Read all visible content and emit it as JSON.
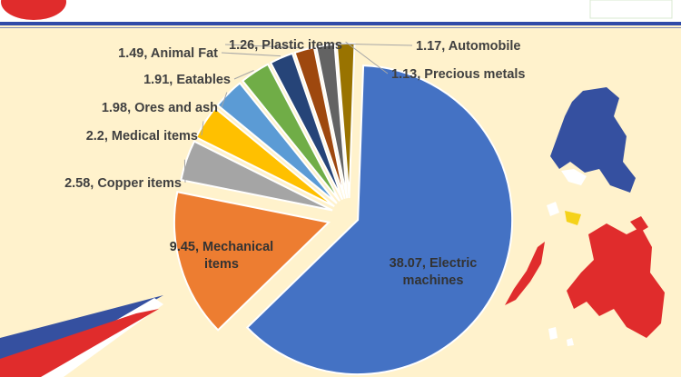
{
  "chart_data": {
    "type": "pie",
    "title": "",
    "slices": [
      {
        "value": 38.07,
        "label": "38.07, Electric machines",
        "lines": [
          "38.07, Electric",
          "machines"
        ],
        "color": "#4472c4"
      },
      {
        "value": 9.45,
        "label": "9.45, Mechanical items",
        "lines": [
          "9.45, Mechanical",
          "items"
        ],
        "color": "#ed7d31"
      },
      {
        "value": 2.58,
        "label": "2.58, Copper items",
        "lines": [
          "2.58, Copper items"
        ],
        "color": "#a5a5a5"
      },
      {
        "value": 2.2,
        "label": "2.2, Medical items",
        "lines": [
          "2.2, Medical items"
        ],
        "color": "#ffc000"
      },
      {
        "value": 1.98,
        "label": "1.98, Ores and ash",
        "lines": [
          "1.98, Ores and ash"
        ],
        "color": "#5b9bd5"
      },
      {
        "value": 1.91,
        "label": "1.91, Eatables",
        "lines": [
          "1.91, Eatables"
        ],
        "color": "#70ad47"
      },
      {
        "value": 1.49,
        "label": "1.49, Animal Fat",
        "lines": [
          "1.49, Animal Fat"
        ],
        "color": "#264478"
      },
      {
        "value": 1.26,
        "label": "1.26, Plastic items",
        "lines": [
          "1.26, Plastic items"
        ],
        "color": "#9e480e"
      },
      {
        "value": 1.17,
        "label": "1.17, Automobile",
        "lines": [
          "1.17, Automobile"
        ],
        "color": "#636363"
      },
      {
        "value": 1.13,
        "label": "1.13, Precious metals",
        "lines": [
          "1.13, Precious metals"
        ],
        "color": "#997300"
      }
    ],
    "legend": "none",
    "slices_exploded": true
  },
  "decor": {
    "flag_colors": {
      "blue": "#3550a0",
      "red": "#e02c2c",
      "white": "#ffffff",
      "yellow": "#f5d21a"
    },
    "map": "philippines-flag-map",
    "logo": "red-circle-logo"
  }
}
